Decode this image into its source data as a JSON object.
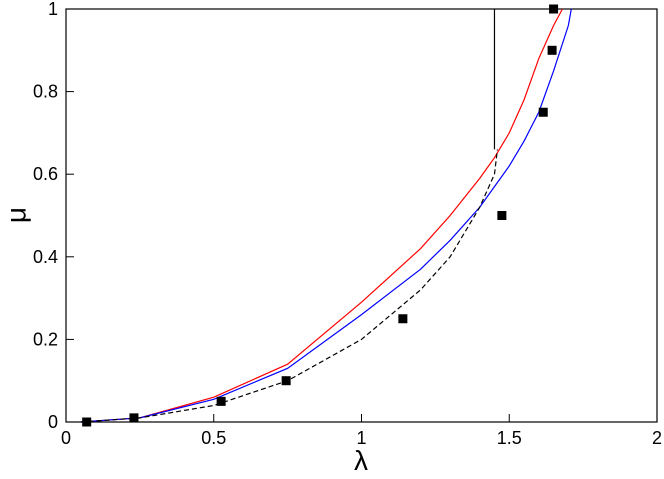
{
  "chart_data": {
    "type": "line",
    "x_label": "λ",
    "y_label": "μ",
    "xlim": [
      0,
      2
    ],
    "ylim": [
      0,
      1
    ],
    "xticks": [
      0,
      0.5,
      1,
      1.5,
      2
    ],
    "yticks": [
      0,
      0.2,
      0.4,
      0.6,
      0.8,
      1
    ],
    "grid": false,
    "series": [
      {
        "color": "#ff0000",
        "style": "solid",
        "x": [
          0.05,
          0.25,
          0.5,
          0.75,
          1.0,
          1.2,
          1.3,
          1.4,
          1.45,
          1.5,
          1.55,
          1.6,
          1.65,
          1.68
        ],
        "values": [
          0,
          0.01,
          0.06,
          0.14,
          0.29,
          0.42,
          0.5,
          0.59,
          0.64,
          0.7,
          0.78,
          0.88,
          0.96,
          1.0
        ]
      },
      {
        "color": "#0000ff",
        "style": "solid",
        "x": [
          0.05,
          0.25,
          0.5,
          0.75,
          1.0,
          1.2,
          1.3,
          1.4,
          1.5,
          1.55,
          1.6,
          1.65,
          1.7,
          1.71
        ],
        "values": [
          0,
          0.01,
          0.055,
          0.13,
          0.26,
          0.37,
          0.44,
          0.52,
          0.62,
          0.68,
          0.75,
          0.85,
          0.96,
          1.0
        ]
      },
      {
        "color": "#000000",
        "style": "dashed",
        "x": [
          0.05,
          0.25,
          0.5,
          0.75,
          1.0,
          1.2,
          1.3,
          1.4,
          1.45,
          1.46
        ],
        "values": [
          0,
          0.01,
          0.04,
          0.1,
          0.2,
          0.32,
          0.4,
          0.52,
          0.6,
          0.66
        ]
      },
      {
        "color": "#000000",
        "style": "solid",
        "x": [
          1.45,
          1.45
        ],
        "values": [
          0.66,
          1.0
        ]
      },
      {
        "color": "#000000",
        "style": "markers",
        "x": [
          0.07,
          0.23,
          0.525,
          0.745,
          1.14,
          1.475,
          1.615,
          1.645,
          1.65
        ],
        "values": [
          0,
          0.01,
          0.05,
          0.1,
          0.25,
          0.5,
          0.75,
          0.9,
          1.0
        ]
      }
    ]
  }
}
